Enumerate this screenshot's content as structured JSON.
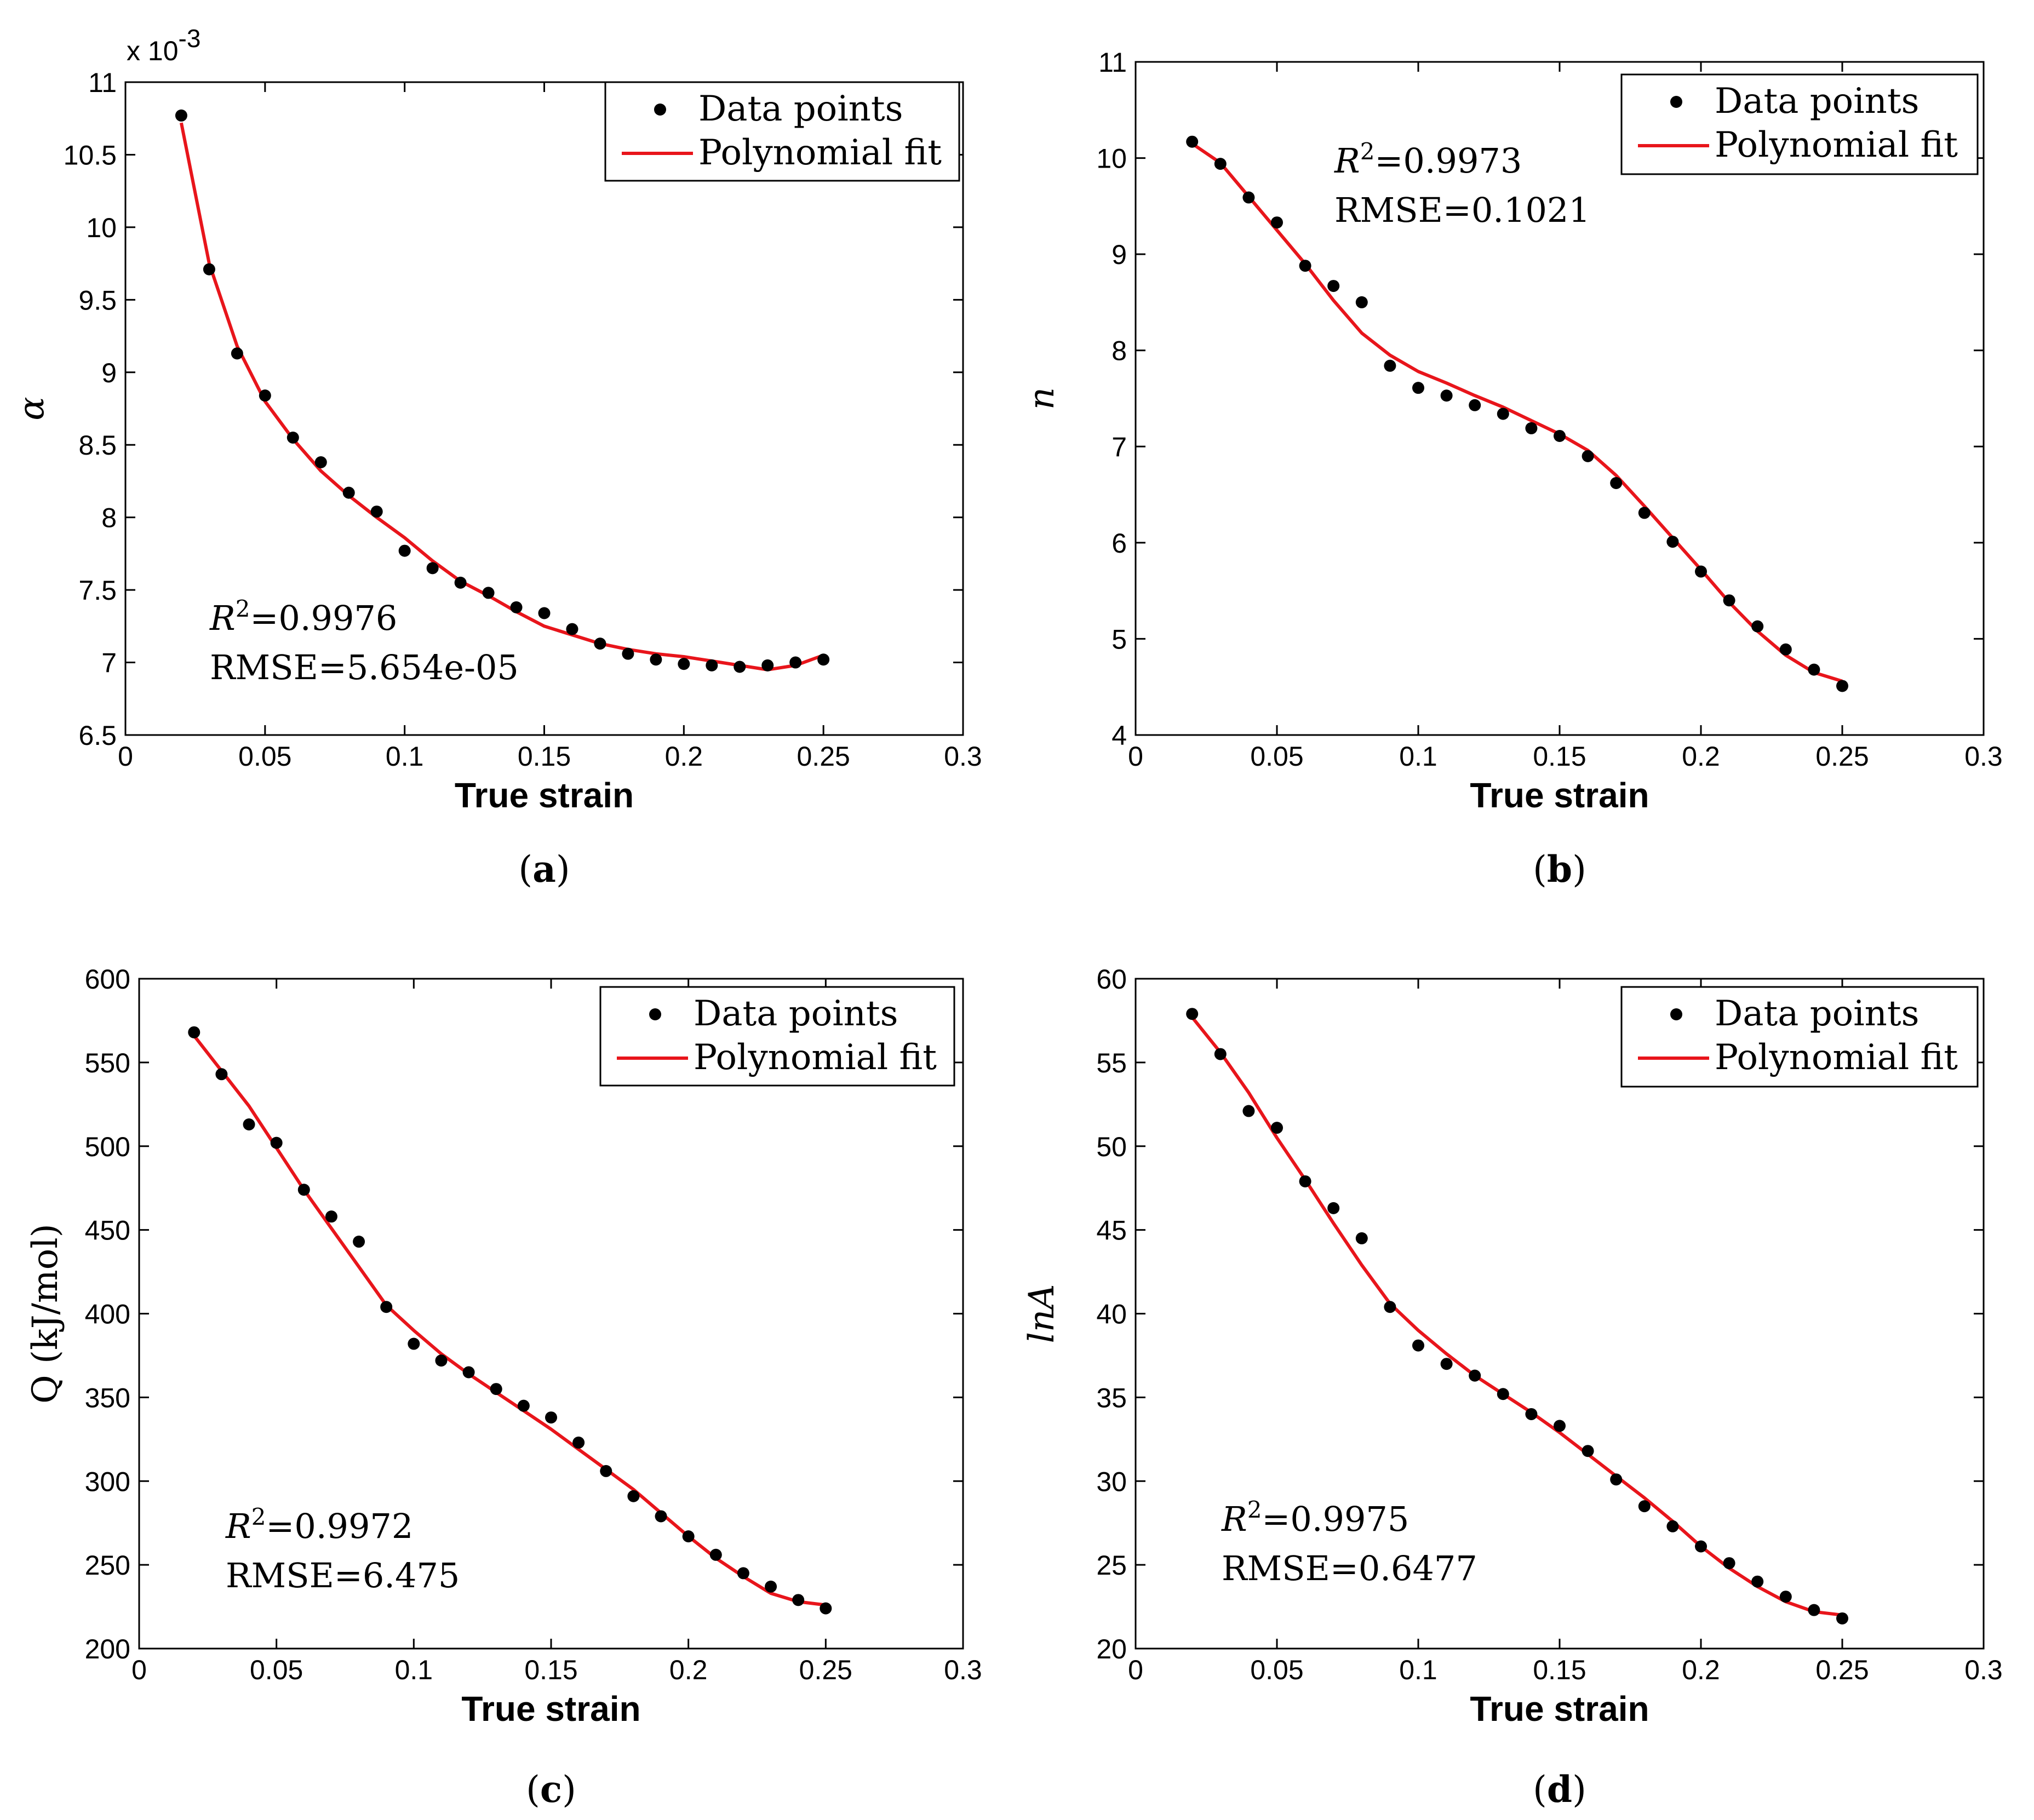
{
  "figure": {
    "panels": [
      {
        "id": "a",
        "caption_letter": "a",
        "ylabel": "α",
        "y_exponent_prefix": "x 10",
        "y_exponent_power": "-3",
        "r2_label": "R",
        "r2_sup": "2",
        "r2_value": "=0.9976",
        "rmse_text": "RMSE=5.654e-05",
        "legend": {
          "points": "Data points",
          "fit": "Polynomial fit"
        }
      },
      {
        "id": "b",
        "caption_letter": "b",
        "ylabel": "n",
        "y_exponent_prefix": "",
        "y_exponent_power": "",
        "r2_label": "R",
        "r2_sup": "2",
        "r2_value": "=0.9973",
        "rmse_text": "RMSE=0.1021",
        "legend": {
          "points": "Data points",
          "fit": "Polynomial fit"
        }
      },
      {
        "id": "c",
        "caption_letter": "c",
        "ylabel": "Q (kJ/mol)",
        "y_exponent_prefix": "",
        "y_exponent_power": "",
        "r2_label": "R",
        "r2_sup": "2",
        "r2_value": "=0.9972",
        "rmse_text": "RMSE=6.475",
        "legend": {
          "points": "Data points",
          "fit": "Polynomial fit"
        }
      },
      {
        "id": "d",
        "caption_letter": "d",
        "ylabel": "lnA",
        "y_exponent_prefix": "",
        "y_exponent_power": "",
        "r2_label": "R",
        "r2_sup": "2",
        "r2_value": "=0.9975",
        "rmse_text": "RMSE=0.6477",
        "legend": {
          "points": "Data points",
          "fit": "Polynomial fit"
        }
      }
    ]
  },
  "colors": {
    "points": "#000000",
    "fit": "#e8151b",
    "axes": "#000000"
  },
  "chart_data": [
    {
      "type": "scatter",
      "title": "",
      "xlabel": "True strain",
      "ylabel": "α (x 10^-3)",
      "xlim": [
        0,
        0.3
      ],
      "ylim": [
        6.5,
        11
      ],
      "xticks": [
        "0",
        "0.05",
        "0.1",
        "0.15",
        "0.2",
        "0.25",
        "0.3"
      ],
      "yticks": [
        "6.5",
        "7",
        "7.5",
        "8",
        "8.5",
        "9",
        "9.5",
        "10",
        "10.5",
        "11"
      ],
      "x": [
        0.02,
        0.03,
        0.04,
        0.05,
        0.06,
        0.07,
        0.08,
        0.09,
        0.1,
        0.11,
        0.12,
        0.13,
        0.14,
        0.15,
        0.16,
        0.17,
        0.18,
        0.19,
        0.2,
        0.21,
        0.22,
        0.23,
        0.24,
        0.25
      ],
      "series": [
        {
          "name": "Data points",
          "values": [
            10.77,
            9.71,
            9.13,
            8.84,
            8.55,
            8.38,
            8.17,
            8.04,
            7.77,
            7.65,
            7.55,
            7.48,
            7.38,
            7.34,
            7.23,
            7.13,
            7.06,
            7.02,
            6.99,
            6.98,
            6.97,
            6.98,
            7.0,
            7.02
          ]
        },
        {
          "name": "Polynomial fit",
          "values": [
            10.72,
            9.75,
            9.18,
            8.8,
            8.54,
            8.32,
            8.15,
            8.0,
            7.86,
            7.7,
            7.56,
            7.46,
            7.35,
            7.25,
            7.19,
            7.13,
            7.09,
            7.06,
            7.04,
            7.01,
            6.98,
            6.95,
            6.98,
            7.05
          ]
        }
      ],
      "legend_position": "top-right"
    },
    {
      "type": "scatter",
      "title": "",
      "xlabel": "True strain",
      "ylabel": "n",
      "xlim": [
        0,
        0.3
      ],
      "ylim": [
        4,
        11
      ],
      "xticks": [
        "0",
        "0.05",
        "0.1",
        "0.15",
        "0.2",
        "0.25",
        "0.3"
      ],
      "yticks": [
        "4",
        "5",
        "6",
        "7",
        "8",
        "9",
        "10",
        "11"
      ],
      "x": [
        0.02,
        0.03,
        0.04,
        0.05,
        0.06,
        0.07,
        0.08,
        0.09,
        0.1,
        0.11,
        0.12,
        0.13,
        0.14,
        0.15,
        0.16,
        0.17,
        0.18,
        0.19,
        0.2,
        0.21,
        0.22,
        0.23,
        0.24,
        0.25
      ],
      "series": [
        {
          "name": "Data points",
          "values": [
            10.17,
            9.94,
            9.59,
            9.33,
            8.88,
            8.67,
            8.5,
            7.84,
            7.61,
            7.53,
            7.43,
            7.34,
            7.19,
            7.11,
            6.9,
            6.62,
            6.31,
            6.01,
            5.7,
            5.4,
            5.13,
            4.89,
            4.68,
            4.51
          ]
        },
        {
          "name": "Polynomial fit",
          "values": [
            10.15,
            9.95,
            9.6,
            9.25,
            8.9,
            8.52,
            8.18,
            7.95,
            7.78,
            7.66,
            7.53,
            7.41,
            7.27,
            7.13,
            6.96,
            6.7,
            6.38,
            6.05,
            5.72,
            5.38,
            5.08,
            4.83,
            4.65,
            4.56
          ]
        }
      ],
      "legend_position": "top-right"
    },
    {
      "type": "scatter",
      "title": "",
      "xlabel": "True strain",
      "ylabel": "Q (kJ/mol)",
      "xlim": [
        0,
        0.3
      ],
      "ylim": [
        200,
        600
      ],
      "xticks": [
        "0",
        "0.05",
        "0.1",
        "0.15",
        "0.2",
        "0.25",
        "0.3"
      ],
      "yticks": [
        "200",
        "250",
        "300",
        "350",
        "400",
        "450",
        "500",
        "550",
        "600"
      ],
      "x": [
        0.02,
        0.03,
        0.04,
        0.05,
        0.06,
        0.07,
        0.08,
        0.09,
        0.1,
        0.11,
        0.12,
        0.13,
        0.14,
        0.15,
        0.16,
        0.17,
        0.18,
        0.19,
        0.2,
        0.21,
        0.22,
        0.23,
        0.24,
        0.25
      ],
      "series": [
        {
          "name": "Data points",
          "values": [
            568,
            543,
            513,
            502,
            474,
            458,
            443,
            404,
            382,
            372,
            365,
            355,
            345,
            338,
            323,
            306,
            291,
            279,
            267,
            256,
            245,
            237,
            229,
            224
          ]
        },
        {
          "name": "Polynomial fit",
          "values": [
            566,
            545,
            524,
            499,
            474,
            451,
            428,
            405,
            390,
            376,
            364,
            353,
            342,
            331,
            319,
            307,
            295,
            281,
            267,
            254,
            243,
            233,
            228,
            226
          ]
        }
      ],
      "legend_position": "top-right"
    },
    {
      "type": "scatter",
      "title": "",
      "xlabel": "True strain",
      "ylabel": "lnA",
      "xlim": [
        0,
        0.3
      ],
      "ylim": [
        20,
        60
      ],
      "xticks": [
        "0",
        "0.05",
        "0.1",
        "0.15",
        "0.2",
        "0.25",
        "0.3"
      ],
      "yticks": [
        "20",
        "25",
        "30",
        "35",
        "40",
        "45",
        "50",
        "55",
        "60"
      ],
      "x": [
        0.02,
        0.03,
        0.04,
        0.05,
        0.06,
        0.07,
        0.08,
        0.09,
        0.1,
        0.11,
        0.12,
        0.13,
        0.14,
        0.15,
        0.16,
        0.17,
        0.18,
        0.19,
        0.2,
        0.21,
        0.22,
        0.23,
        0.24,
        0.25
      ],
      "series": [
        {
          "name": "Data points",
          "values": [
            57.9,
            55.5,
            52.1,
            51.1,
            47.9,
            46.3,
            44.5,
            40.4,
            38.1,
            37.0,
            36.3,
            35.2,
            34.0,
            33.3,
            31.8,
            30.1,
            28.5,
            27.3,
            26.1,
            25.1,
            24.0,
            23.1,
            22.3,
            21.8
          ]
        },
        {
          "name": "Polynomial fit",
          "values": [
            57.7,
            55.6,
            53.2,
            50.5,
            48.0,
            45.4,
            42.9,
            40.6,
            39.0,
            37.6,
            36.3,
            35.2,
            34.1,
            32.9,
            31.6,
            30.3,
            29.0,
            27.6,
            26.1,
            24.8,
            23.7,
            22.8,
            22.2,
            22.0
          ]
        }
      ],
      "legend_position": "top-right"
    }
  ]
}
